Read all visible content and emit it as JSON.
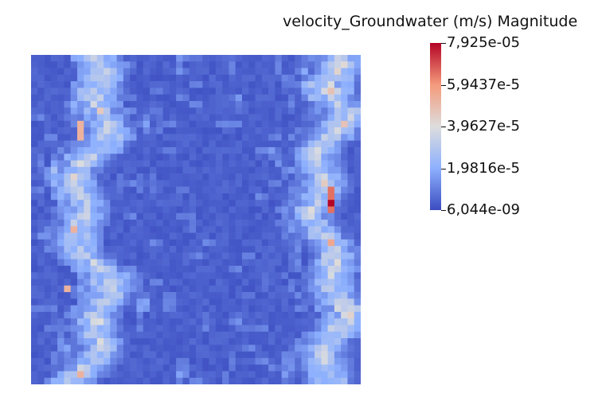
{
  "chart_data": {
    "type": "heatmap",
    "title": "",
    "grid": false,
    "legend": {
      "title": "velocity_Groundwater (m/s) Magnitude",
      "placement": "top-right",
      "min": 6.044e-09,
      "max": 7.925e-05,
      "ticks": [
        {
          "label": "7,925e-05",
          "value": 7.925e-05
        },
        {
          "label": "5,9437e-5",
          "value": 5.9437e-05
        },
        {
          "label": "3,9627e-5",
          "value": 3.9627e-05
        },
        {
          "label": "1,9816e-5",
          "value": 1.9816e-05
        },
        {
          "label": "6,044e-09",
          "value": 6.044e-09
        }
      ],
      "colormap": [
        "#3b4cc0",
        "#8db0fe",
        "#dddddd",
        "#f49a7b",
        "#b40426"
      ]
    },
    "grid_cols": 50,
    "grid_rows": 50
  }
}
